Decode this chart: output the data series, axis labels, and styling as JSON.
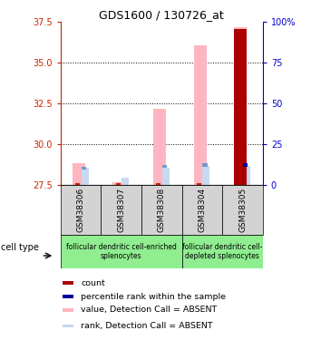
{
  "title": "GDS1600 / 130726_at",
  "samples": [
    "GSM38306",
    "GSM38307",
    "GSM38308",
    "GSM38304",
    "GSM38305"
  ],
  "ylim_left": [
    27.5,
    37.5
  ],
  "ylim_right": [
    0,
    100
  ],
  "yticks_left": [
    27.5,
    30.0,
    32.5,
    35.0,
    37.5
  ],
  "yticks_right": [
    0,
    25,
    50,
    75,
    100
  ],
  "value_absent": [
    28.85,
    27.7,
    32.2,
    36.1,
    37.2
  ],
  "rank_absent_top": [
    28.55,
    27.95,
    28.6,
    28.7,
    28.7
  ],
  "count_top": [
    27.65,
    27.6,
    27.6,
    27.6,
    37.1
  ],
  "percentile_top": [
    28.45,
    0.0,
    28.55,
    28.65,
    28.65
  ],
  "has_count_absent": [
    true,
    true,
    true,
    true,
    false
  ],
  "has_percentile_absent": [
    true,
    false,
    true,
    true,
    false
  ],
  "has_percentile_present": [
    false,
    false,
    false,
    false,
    true
  ],
  "color_value_absent": "#FFB6C1",
  "color_rank_absent": "#C8D8F0",
  "color_count_absent": "#CC2200",
  "color_count_present": "#AA0000",
  "color_percentile_absent": "#7799CC",
  "color_percentile_present": "#000099",
  "axis_color_left": "#CC2200",
  "axis_color_right": "#0000CC",
  "bg_labels": "#D3D3D3",
  "bg_celltype": "#90EE90",
  "legend_items": [
    {
      "label": "count",
      "color": "#AA0000"
    },
    {
      "label": "percentile rank within the sample",
      "color": "#000099"
    },
    {
      "label": "value, Detection Call = ABSENT",
      "color": "#FFB6C1"
    },
    {
      "label": "rank, Detection Call = ABSENT",
      "color": "#C8D8F0"
    }
  ]
}
